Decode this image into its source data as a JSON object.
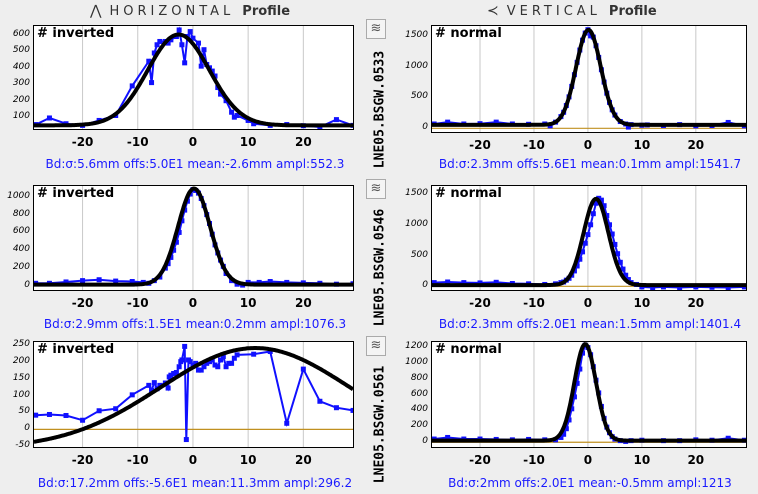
{
  "header": {
    "horizontal": {
      "icon": "bell-curve-icon",
      "title": "HORIZONTAL",
      "suffix": "Profile"
    },
    "vertical": {
      "icon": "vertical-bell-curve-icon",
      "title": "VERTICAL",
      "suffix": "Profile"
    }
  },
  "devices": [
    "LNE05.BSGW.0533",
    "LNE05.BSGW.0546",
    "LNE05.BSGW.0561"
  ],
  "toggle_icon": "wave-toggle-icon",
  "colors": {
    "data": "#1010ff",
    "fit": "#000000",
    "zero": "#c09020",
    "grid": "#c8c8c8",
    "caption": "#1a1aff"
  },
  "chart_data": [
    {
      "id": "h0",
      "type": "line",
      "tag": "# inverted",
      "caption": "Bd:σ:5.6mm offs:5.0E1 mean:-2.6mm ampl:552.3",
      "xlim": [
        -28.8,
        29
      ],
      "ylim": [
        28,
        654
      ],
      "xticks": [
        -20,
        -10,
        0,
        10,
        20
      ],
      "yticks": [
        100,
        200,
        300,
        400,
        500,
        600
      ],
      "zero_line": false,
      "fit": {
        "sigma": 5.6,
        "offset": 50,
        "mean": -2.6,
        "ampl": 552.3
      },
      "points": [
        [
          -28.5,
          55
        ],
        [
          -26,
          95
        ],
        [
          -23,
          60
        ],
        [
          -20,
          50
        ],
        [
          -17,
          80
        ],
        [
          -14,
          110
        ],
        [
          -11,
          290
        ],
        [
          -8,
          440
        ],
        [
          -7.5,
          310
        ],
        [
          -7,
          490
        ],
        [
          -6.5,
          540
        ],
        [
          -6,
          560
        ],
        [
          -5,
          560
        ],
        [
          -4.5,
          550
        ],
        [
          -4,
          570
        ],
        [
          -3,
          590
        ],
        [
          -2.5,
          630
        ],
        [
          -2,
          540
        ],
        [
          -1.5,
          430
        ],
        [
          -1,
          590
        ],
        [
          -0.5,
          620
        ],
        [
          0,
          580
        ],
        [
          1,
          550
        ],
        [
          1.5,
          410
        ],
        [
          2,
          510
        ],
        [
          2.5,
          420
        ],
        [
          3,
          400
        ],
        [
          3.5,
          380
        ],
        [
          4,
          350
        ],
        [
          4.5,
          280
        ],
        [
          5,
          240
        ],
        [
          6,
          200
        ],
        [
          7,
          130
        ],
        [
          7.5,
          100
        ],
        [
          8,
          110
        ],
        [
          10,
          80
        ],
        [
          11,
          60
        ],
        [
          14,
          50
        ],
        [
          17,
          55
        ],
        [
          20,
          48
        ],
        [
          23,
          40
        ],
        [
          26,
          85
        ],
        [
          29,
          50
        ]
      ]
    },
    {
      "id": "v0",
      "type": "line",
      "tag": "# normal",
      "caption": "Bd:σ:2.3mm offs:5.6E1 mean:0.1mm ampl:1541.7",
      "xlim": [
        -28.9,
        29.3
      ],
      "ylim": [
        -60,
        1660
      ],
      "xticks": [
        -20,
        -10,
        0,
        10,
        20
      ],
      "yticks": [
        0,
        500,
        1000,
        1500
      ],
      "zero_line": true,
      "fit": {
        "sigma": 2.3,
        "offset": 56,
        "mean": 0.1,
        "ampl": 1541.7
      },
      "points": [
        [
          -28.5,
          70
        ],
        [
          -26,
          100
        ],
        [
          -23,
          70
        ],
        [
          -20,
          75
        ],
        [
          -17,
          100
        ],
        [
          -14,
          70
        ],
        [
          -11,
          65
        ],
        [
          -8,
          70
        ],
        [
          -7,
          40
        ],
        [
          -6,
          100
        ],
        [
          -5,
          190
        ],
        [
          -4.5,
          260
        ],
        [
          -4,
          370
        ],
        [
          -3.5,
          510
        ],
        [
          -3,
          680
        ],
        [
          -2.5,
          870
        ],
        [
          -2,
          1070
        ],
        [
          -1.5,
          1270
        ],
        [
          -1,
          1430
        ],
        [
          -0.5,
          1545
        ],
        [
          0,
          1600
        ],
        [
          0.5,
          1500
        ],
        [
          1,
          1480
        ],
        [
          1.5,
          1340
        ],
        [
          2,
          1150
        ],
        [
          2.5,
          950
        ],
        [
          3,
          750
        ],
        [
          3.5,
          570
        ],
        [
          4,
          420
        ],
        [
          4.5,
          300
        ],
        [
          5,
          215
        ],
        [
          6,
          110
        ],
        [
          7,
          70
        ],
        [
          7.5,
          20
        ],
        [
          8,
          60
        ],
        [
          10,
          50
        ],
        [
          11,
          55
        ],
        [
          14,
          45
        ],
        [
          17,
          60
        ],
        [
          20,
          40
        ],
        [
          23,
          45
        ],
        [
          26,
          95
        ],
        [
          29,
          40
        ]
      ]
    },
    {
      "id": "h1",
      "type": "line",
      "tag": "# inverted",
      "caption": "Bd:σ:2.9mm offs:1.5E1 mean:0.2mm ampl:1076.3",
      "xlim": [
        -28.8,
        29
      ],
      "ylim": [
        -45,
        1120
      ],
      "xticks": [
        -20,
        -10,
        0,
        10,
        20
      ],
      "yticks": [
        0,
        200,
        400,
        600,
        800,
        1000
      ],
      "zero_line": false,
      "fit": {
        "sigma": 2.9,
        "offset": 15,
        "mean": 0.2,
        "ampl": 1076.3
      },
      "points": [
        [
          -28.5,
          30
        ],
        [
          -26,
          30
        ],
        [
          -23,
          45
        ],
        [
          -20,
          60
        ],
        [
          -17,
          70
        ],
        [
          -14,
          55
        ],
        [
          -11,
          50
        ],
        [
          -9,
          40
        ],
        [
          -8,
          30
        ],
        [
          -7,
          60
        ],
        [
          -6,
          100
        ],
        [
          -5,
          200
        ],
        [
          -4.5,
          250
        ],
        [
          -4,
          320
        ],
        [
          -3.5,
          400
        ],
        [
          -3,
          490
        ],
        [
          -2.5,
          600
        ],
        [
          -2,
          730
        ],
        [
          -1.5,
          850
        ],
        [
          -1,
          950
        ],
        [
          -0.5,
          1030
        ],
        [
          0,
          1080
        ],
        [
          0.5,
          1070
        ],
        [
          1,
          1040
        ],
        [
          1.5,
          980
        ],
        [
          2,
          900
        ],
        [
          2.5,
          800
        ],
        [
          3,
          700
        ],
        [
          3.5,
          580
        ],
        [
          4,
          460
        ],
        [
          4.5,
          370
        ],
        [
          5,
          290
        ],
        [
          5.5,
          220
        ],
        [
          6,
          140
        ],
        [
          7,
          60
        ],
        [
          8,
          20
        ],
        [
          9,
          10
        ],
        [
          10,
          40
        ],
        [
          12,
          40
        ],
        [
          14,
          50
        ],
        [
          17,
          40
        ],
        [
          20,
          35
        ],
        [
          23,
          30
        ],
        [
          26,
          20
        ],
        [
          29,
          25
        ]
      ]
    },
    {
      "id": "v1",
      "type": "line",
      "tag": "# normal",
      "caption": "Bd:σ:2.3mm offs:2.0E1 mean:1.5mm ampl:1401.4",
      "xlim": [
        -28.9,
        29.3
      ],
      "ylim": [
        -60,
        1630
      ],
      "xticks": [
        -20,
        -10,
        0,
        10,
        20
      ],
      "yticks": [
        0,
        500,
        1000,
        1500
      ],
      "zero_line": true,
      "fit": {
        "sigma": 2.3,
        "offset": 20,
        "mean": 1.5,
        "ampl": 1401.4
      },
      "points": [
        [
          -28.5,
          60
        ],
        [
          -26,
          70
        ],
        [
          -23,
          60
        ],
        [
          -20,
          55
        ],
        [
          -17,
          65
        ],
        [
          -14,
          45
        ],
        [
          -11,
          40
        ],
        [
          -8,
          30
        ],
        [
          -6,
          40
        ],
        [
          -5,
          60
        ],
        [
          -4.5,
          70
        ],
        [
          -4,
          100
        ],
        [
          -3.5,
          130
        ],
        [
          -3,
          180
        ],
        [
          -2.5,
          250
        ],
        [
          -2,
          330
        ],
        [
          -1.5,
          440
        ],
        [
          -1,
          560
        ],
        [
          -0.5,
          700
        ],
        [
          0,
          840
        ],
        [
          0.5,
          1000
        ],
        [
          1,
          1180
        ],
        [
          1.5,
          1350
        ],
        [
          2,
          1430
        ],
        [
          2.5,
          1400
        ],
        [
          3,
          1310
        ],
        [
          3.5,
          1150
        ],
        [
          4,
          1000
        ],
        [
          4.5,
          850
        ],
        [
          5,
          680
        ],
        [
          5.5,
          530
        ],
        [
          6,
          390
        ],
        [
          6.5,
          280
        ],
        [
          7,
          180
        ],
        [
          7.5,
          110
        ],
        [
          8,
          60
        ],
        [
          9,
          30
        ],
        [
          10,
          -10
        ],
        [
          12,
          -20
        ],
        [
          14,
          -10
        ],
        [
          17,
          -20
        ],
        [
          20,
          -10
        ],
        [
          23,
          -15
        ],
        [
          26,
          -20
        ],
        [
          29,
          -10
        ]
      ]
    },
    {
      "id": "h2",
      "type": "line",
      "tag": "# inverted",
      "caption": "Bd:σ:17.2mm offs:-5.6E1 mean:11.3mm ampl:296.2",
      "xlim": [
        -28.8,
        29
      ],
      "ylim": [
        -52,
        258
      ],
      "xticks": [
        -20,
        -10,
        0,
        10,
        20
      ],
      "yticks": [
        -50,
        0,
        50,
        100,
        150,
        200,
        250
      ],
      "zero_line": true,
      "fit": {
        "sigma": 17.2,
        "offset": -56,
        "mean": 11.3,
        "ampl": 296.2
      },
      "points": [
        [
          -28.5,
          42
        ],
        [
          -26,
          44
        ],
        [
          -23,
          41
        ],
        [
          -20,
          27
        ],
        [
          -17,
          55
        ],
        [
          -14,
          61
        ],
        [
          -11,
          102
        ],
        [
          -8,
          130
        ],
        [
          -7.5,
          115
        ],
        [
          -7,
          138
        ],
        [
          -6.5,
          120
        ],
        [
          -6,
          130
        ],
        [
          -5,
          137
        ],
        [
          -4.5,
          122
        ],
        [
          -4.3,
          155
        ],
        [
          -4,
          160
        ],
        [
          -3.5,
          165
        ],
        [
          -3,
          168
        ],
        [
          -2.5,
          185
        ],
        [
          -2.2,
          200
        ],
        [
          -2,
          205
        ],
        [
          -1.5,
          245
        ],
        [
          -1.2,
          -30
        ],
        [
          -0.8,
          205
        ],
        [
          -0.5,
          200
        ],
        [
          0,
          190
        ],
        [
          0.5,
          195
        ],
        [
          1,
          175
        ],
        [
          1.5,
          175
        ],
        [
          2,
          185
        ],
        [
          2.5,
          195
        ],
        [
          3,
          200
        ],
        [
          3.5,
          205
        ],
        [
          4,
          190
        ],
        [
          4.5,
          185
        ],
        [
          5,
          205
        ],
        [
          5.5,
          215
        ],
        [
          6,
          185
        ],
        [
          6.5,
          195
        ],
        [
          7,
          195
        ],
        [
          7.5,
          210
        ],
        [
          8,
          220
        ],
        [
          11,
          222
        ],
        [
          14,
          230
        ],
        [
          17,
          18
        ],
        [
          20,
          178
        ],
        [
          23,
          83
        ],
        [
          26,
          64
        ],
        [
          29,
          56
        ]
      ]
    },
    {
      "id": "v2",
      "type": "line",
      "tag": "# normal",
      "caption": "Bd:σ:2mm offs:2.0E1 mean:-0.5mm ampl:1213",
      "xlim": [
        -28.9,
        29.3
      ],
      "ylim": [
        -60,
        1260
      ],
      "xticks": [
        -20,
        -10,
        0,
        10,
        20
      ],
      "yticks": [
        0,
        200,
        400,
        600,
        800,
        1000,
        1200
      ],
      "zero_line": true,
      "fit": {
        "sigma": 2,
        "offset": 20,
        "mean": -0.5,
        "ampl": 1213
      },
      "points": [
        [
          -28.5,
          40
        ],
        [
          -26,
          60
        ],
        [
          -23,
          40
        ],
        [
          -20,
          40
        ],
        [
          -17,
          35
        ],
        [
          -14,
          30
        ],
        [
          -11,
          35
        ],
        [
          -8,
          30
        ],
        [
          -6,
          30
        ],
        [
          -5,
          60
        ],
        [
          -4.5,
          100
        ],
        [
          -4,
          170
        ],
        [
          -3.5,
          280
        ],
        [
          -3,
          420
        ],
        [
          -2.5,
          570
        ],
        [
          -2,
          740
        ],
        [
          -1.5,
          920
        ],
        [
          -1,
          1120
        ],
        [
          -0.5,
          1220
        ],
        [
          0,
          1190
        ],
        [
          0.5,
          1100
        ],
        [
          1,
          950
        ],
        [
          1.5,
          780
        ],
        [
          2,
          620
        ],
        [
          2.5,
          450
        ],
        [
          3,
          300
        ],
        [
          3.5,
          190
        ],
        [
          4,
          120
        ],
        [
          4.5,
          70
        ],
        [
          5,
          40
        ],
        [
          6,
          20
        ],
        [
          7,
          10
        ],
        [
          8,
          20
        ],
        [
          10,
          25
        ],
        [
          14,
          20
        ],
        [
          17,
          20
        ],
        [
          20,
          30
        ],
        [
          23,
          25
        ],
        [
          26,
          50
        ],
        [
          29,
          25
        ]
      ]
    }
  ]
}
